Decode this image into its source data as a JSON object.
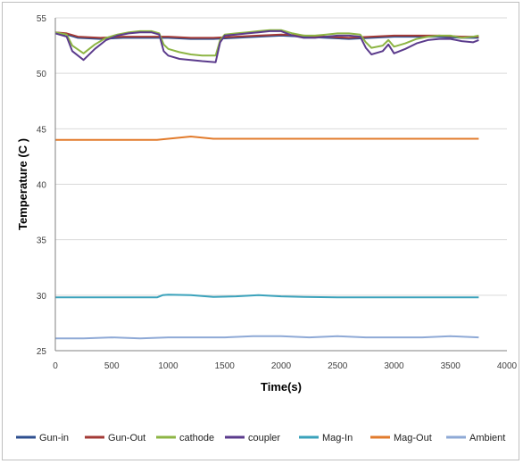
{
  "chart_data": {
    "type": "line",
    "title": "",
    "xlabel": "Time(s)",
    "ylabel": "Temperature (C )",
    "xlim": [
      0,
      4000
    ],
    "ylim": [
      25,
      55
    ],
    "xticks": [
      "0",
      "500",
      "1000",
      "1500",
      "2000",
      "2500",
      "3000",
      "3500",
      "4000"
    ],
    "yticks": [
      "25",
      "30",
      "35",
      "40",
      "45",
      "50",
      "55"
    ],
    "grid": "horizontal",
    "legend_position": "bottom",
    "series": [
      {
        "name": "Gun-in",
        "color": "#2e4f8f",
        "x": [
          0,
          100,
          200,
          400,
          600,
          800,
          1000,
          1200,
          1400,
          1600,
          1800,
          2000,
          2200,
          2400,
          2600,
          2800,
          3000,
          3200,
          3400,
          3600,
          3750
        ],
        "y": [
          53.6,
          53.5,
          53.2,
          53.1,
          53.2,
          53.2,
          53.2,
          53.1,
          53.1,
          53.2,
          53.3,
          53.4,
          53.3,
          53.2,
          53.1,
          53.2,
          53.3,
          53.3,
          53.3,
          53.2,
          53.2
        ]
      },
      {
        "name": "Gun-Out",
        "color": "#a33a36",
        "x": [
          0,
          100,
          200,
          400,
          600,
          800,
          1000,
          1200,
          1400,
          1600,
          1800,
          2000,
          2200,
          2400,
          2600,
          2800,
          3000,
          3200,
          3400,
          3600,
          3750
        ],
        "y": [
          53.7,
          53.6,
          53.3,
          53.2,
          53.3,
          53.3,
          53.3,
          53.2,
          53.2,
          53.3,
          53.4,
          53.5,
          53.4,
          53.3,
          53.2,
          53.3,
          53.4,
          53.4,
          53.4,
          53.3,
          53.3
        ]
      },
      {
        "name": "cathode",
        "color": "#8db544",
        "x": [
          0,
          100,
          150,
          250,
          350,
          450,
          550,
          650,
          750,
          850,
          920,
          960,
          1000,
          1100,
          1200,
          1300,
          1420,
          1460,
          1500,
          1600,
          1700,
          1800,
          1900,
          2000,
          2100,
          2200,
          2300,
          2400,
          2500,
          2600,
          2700,
          2750,
          2800,
          2900,
          2950,
          3000,
          3100,
          3200,
          3300,
          3400,
          3500,
          3600,
          3700,
          3750
        ],
        "y": [
          53.7,
          53.5,
          52.5,
          51.8,
          52.6,
          53.2,
          53.5,
          53.7,
          53.8,
          53.8,
          53.6,
          52.6,
          52.2,
          51.9,
          51.7,
          51.6,
          51.6,
          53.0,
          53.5,
          53.6,
          53.7,
          53.8,
          53.9,
          53.9,
          53.6,
          53.4,
          53.4,
          53.5,
          53.6,
          53.6,
          53.5,
          52.8,
          52.3,
          52.5,
          53.0,
          52.4,
          52.7,
          53.1,
          53.3,
          53.4,
          53.4,
          53.2,
          53.3,
          53.4
        ]
      },
      {
        "name": "coupler",
        "color": "#5b3b8c",
        "x": [
          0,
          100,
          150,
          250,
          350,
          450,
          550,
          650,
          750,
          850,
          920,
          960,
          1000,
          1100,
          1200,
          1300,
          1420,
          1460,
          1500,
          1600,
          1700,
          1800,
          1900,
          2000,
          2100,
          2200,
          2300,
          2400,
          2500,
          2600,
          2700,
          2750,
          2800,
          2900,
          2950,
          3000,
          3100,
          3200,
          3300,
          3400,
          3500,
          3600,
          3700,
          3750
        ],
        "y": [
          53.6,
          53.3,
          52.0,
          51.2,
          52.2,
          53.0,
          53.4,
          53.6,
          53.7,
          53.7,
          53.5,
          52.0,
          51.6,
          51.3,
          51.2,
          51.1,
          51.0,
          52.8,
          53.4,
          53.5,
          53.6,
          53.7,
          53.8,
          53.8,
          53.4,
          53.2,
          53.2,
          53.3,
          53.4,
          53.4,
          53.3,
          52.3,
          51.7,
          52.0,
          52.6,
          51.8,
          52.2,
          52.7,
          53.0,
          53.1,
          53.1,
          52.9,
          52.8,
          53.0
        ]
      },
      {
        "name": "Mag-In",
        "color": "#3aa2bb",
        "x": [
          0,
          500,
          900,
          950,
          1000,
          1200,
          1400,
          1600,
          1800,
          2000,
          2200,
          2500,
          3000,
          3500,
          3750
        ],
        "y": [
          29.8,
          29.8,
          29.8,
          30.0,
          30.05,
          30.0,
          29.85,
          29.9,
          30.0,
          29.9,
          29.85,
          29.8,
          29.8,
          29.8,
          29.8
        ]
      },
      {
        "name": "Mag-Out",
        "color": "#e27b2c",
        "x": [
          0,
          500,
          900,
          1000,
          1100,
          1200,
          1300,
          1400,
          1600,
          2000,
          2500,
          3000,
          3500,
          3750
        ],
        "y": [
          44.0,
          44.0,
          44.0,
          44.1,
          44.2,
          44.3,
          44.2,
          44.1,
          44.1,
          44.1,
          44.1,
          44.1,
          44.1,
          44.1
        ]
      },
      {
        "name": "Ambient",
        "color": "#8ea9d6",
        "x": [
          0,
          250,
          500,
          750,
          1000,
          1250,
          1500,
          1750,
          2000,
          2250,
          2500,
          2750,
          3000,
          3250,
          3500,
          3750
        ],
        "y": [
          26.1,
          26.1,
          26.2,
          26.1,
          26.2,
          26.2,
          26.2,
          26.3,
          26.3,
          26.2,
          26.3,
          26.2,
          26.2,
          26.2,
          26.3,
          26.2
        ]
      }
    ]
  }
}
